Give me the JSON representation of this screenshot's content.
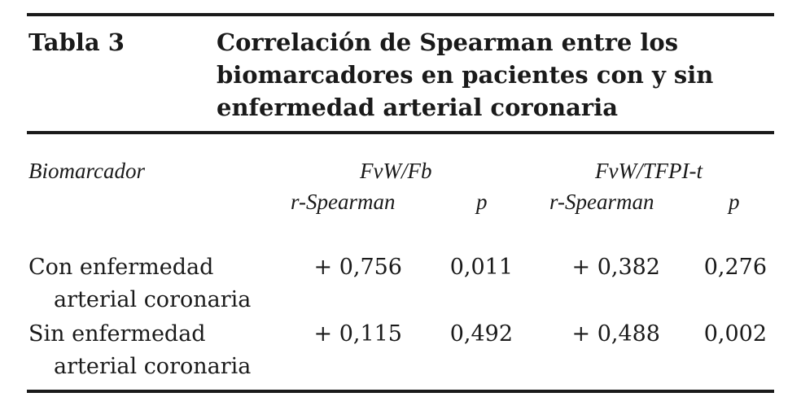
{
  "table": {
    "label": "Tabla 3",
    "title_lines": [
      "Correlación de Spearman entre los",
      "biomarcadores en pacientes con y sin",
      "enfermedad arterial coronaria"
    ],
    "header": {
      "biomarker": "Biomarcador",
      "group1": "FvW/Fb",
      "group2": "FvW/TFPI-t",
      "r_label": "r-Spearman",
      "p_label": "p"
    },
    "rows": [
      {
        "label_lines": [
          "Con enfermedad",
          "arterial coronaria"
        ],
        "r1": "+ 0,756",
        "p1": "0,011",
        "r2": "+ 0,382",
        "p2": "0,276"
      },
      {
        "label_lines": [
          "Sin enfermedad",
          "arterial coronaria"
        ],
        "r1": "+ 0,115",
        "p1": "0,492",
        "r2": "+ 0,488",
        "p2": "0,002"
      }
    ]
  }
}
